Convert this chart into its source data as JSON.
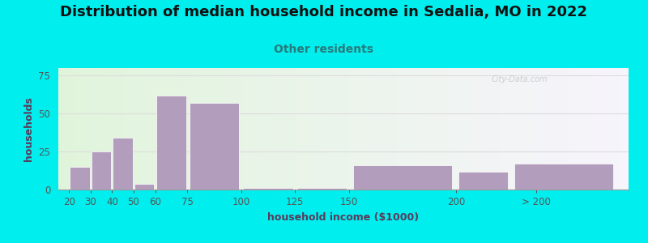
{
  "title": "Distribution of median household income in Sedalia, MO in 2022",
  "subtitle": "Other residents",
  "xlabel": "household income ($1000)",
  "ylabel": "households",
  "title_fontsize": 13,
  "subtitle_fontsize": 10,
  "label_fontsize": 9,
  "tick_fontsize": 8.5,
  "background_outer": "#00EEEE",
  "bar_color": "#b39dbd",
  "bar_edgecolor": "#ffffff",
  "bar_left_edges": [
    20,
    30,
    40,
    50,
    60,
    75,
    100,
    125,
    150,
    200,
    225
  ],
  "bar_widths": [
    10,
    10,
    10,
    10,
    15,
    25,
    25,
    25,
    50,
    25,
    50
  ],
  "values": [
    15,
    25,
    34,
    4,
    62,
    57,
    1,
    1,
    16,
    12,
    17
  ],
  "xtick_positions": [
    20,
    30,
    40,
    50,
    60,
    75,
    100,
    125,
    150,
    200,
    237
  ],
  "xtick_labels": [
    "20",
    "30",
    "40",
    "50",
    "60",
    "75",
    "100",
    "125",
    "150",
    "200",
    "> 200"
  ],
  "xlim": [
    15,
    280
  ],
  "ylim": [
    0,
    80
  ],
  "yticks": [
    0,
    25,
    50,
    75
  ],
  "title_color": "#111111",
  "subtitle_color": "#2a7a7a",
  "axis_label_color": "#5a3a5a",
  "tick_color": "#555555",
  "grid_color": "#dddddd",
  "watermark_text": "City-Data.com"
}
